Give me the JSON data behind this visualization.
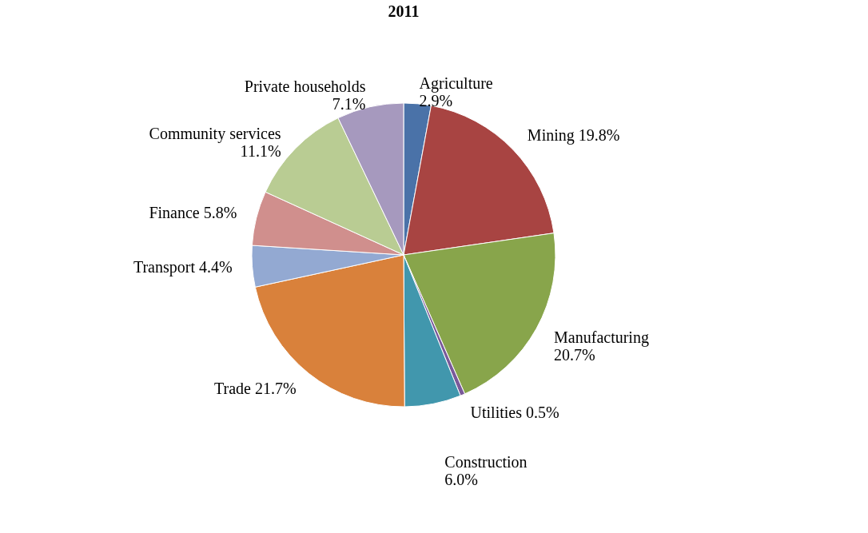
{
  "chart_data": {
    "type": "pie",
    "title": "2011",
    "legend": false,
    "categories": [
      "Agriculture",
      "Mining",
      "Manufacturing",
      "Utilities",
      "Construction",
      "Trade",
      "Transport",
      "Finance",
      "Community services",
      "Private households"
    ],
    "values": [
      2.9,
      19.8,
      20.7,
      0.5,
      6.0,
      21.7,
      4.4,
      5.8,
      11.1,
      7.1
    ],
    "value_labels": [
      "2.9%",
      "19.8%",
      "20.7%",
      "0.5%",
      "6.0%",
      "21.7%",
      "4.4%",
      "5.8%",
      "11.1%",
      "7.1%"
    ],
    "colors": [
      "#4a72a8",
      "#a84442",
      "#88a54b",
      "#7a5a9a",
      "#4197ad",
      "#d9813b",
      "#93a9d2",
      "#d08f8d",
      "#b9cc93",
      "#a699be"
    ]
  }
}
